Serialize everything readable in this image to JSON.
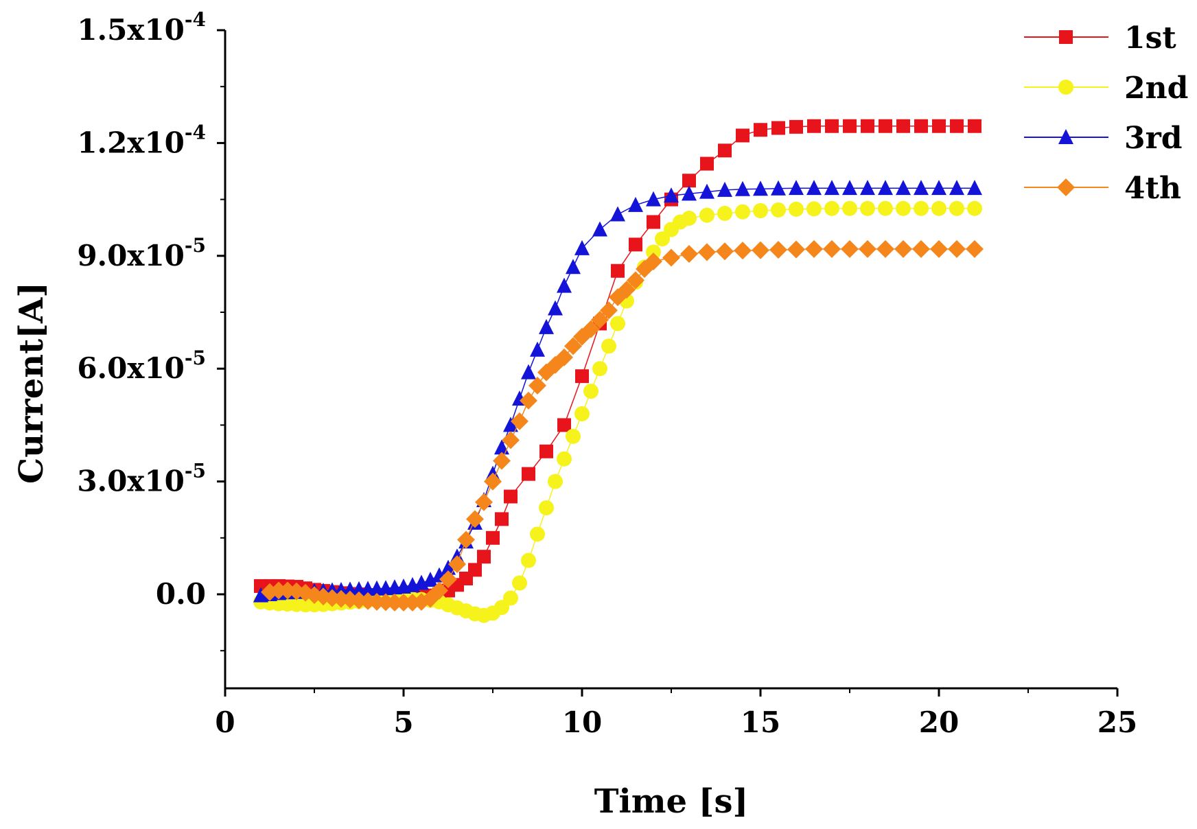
{
  "chart_data": {
    "type": "scatter",
    "title": "",
    "xlabel": "Time [s]",
    "ylabel": "Current[A]",
    "xlim": [
      0,
      25
    ],
    "ylim": [
      -2.5e-05,
      0.00015
    ],
    "x_ticks": [
      0,
      5,
      10,
      15,
      20,
      25
    ],
    "x_tick_labels": [
      "0",
      "5",
      "10",
      "15",
      "20",
      "25"
    ],
    "y_ticks": [
      0,
      3e-05,
      6e-05,
      9e-05,
      0.00012,
      0.00015
    ],
    "y_tick_labels": [
      {
        "mantissa": "0.0",
        "exp": ""
      },
      {
        "mantissa": "3.0x10",
        "exp": "-5"
      },
      {
        "mantissa": "6.0x10",
        "exp": "-5"
      },
      {
        "mantissa": "9.0x10",
        "exp": "-5"
      },
      {
        "mantissa": "1.2x10",
        "exp": "-4"
      },
      {
        "mantissa": "1.5x10",
        "exp": "-4"
      }
    ],
    "legend_position": "top-right",
    "series": [
      {
        "name": "1st",
        "color": "#e8141b",
        "marker": "square",
        "x": [
          1,
          1.25,
          1.5,
          1.75,
          2,
          2.25,
          2.5,
          2.75,
          3,
          3.25,
          3.5,
          3.75,
          4,
          4.25,
          4.5,
          4.75,
          5,
          5.25,
          5.5,
          5.75,
          6,
          6.25,
          6.5,
          6.75,
          7,
          7.25,
          7.5,
          7.75,
          8,
          8.5,
          9,
          9.5,
          10,
          10.5,
          11,
          11.5,
          12,
          12.5,
          13,
          13.5,
          14,
          14.5,
          15,
          15.5,
          16,
          16.5,
          17,
          17.5,
          18,
          18.5,
          19,
          19.5,
          20,
          20.5,
          21
        ],
        "y": [
          2.2e-06,
          2.2e-06,
          2.2e-06,
          2.1e-06,
          2e-06,
          1.6e-06,
          1.2e-06,
          9e-07,
          6e-07,
          3e-07,
          1e-07,
          0,
          -2e-07,
          -4e-07,
          -5e-07,
          -6e-07,
          -6e-07,
          -5e-07,
          -4e-07,
          -3e-07,
          0,
          1e-06,
          2.5e-06,
          4.2e-06,
          6.5e-06,
          1e-05,
          1.5e-05,
          2e-05,
          2.6e-05,
          3.2e-05,
          3.8e-05,
          4.5e-05,
          5.8e-05,
          7.2e-05,
          8.6e-05,
          9.3e-05,
          9.9e-05,
          0.000105,
          0.00011,
          0.0001145,
          0.000118,
          0.000122,
          0.0001235,
          0.000124,
          0.0001243,
          0.0001245,
          0.0001245,
          0.0001245,
          0.0001245,
          0.0001245,
          0.0001245,
          0.0001245,
          0.0001245,
          0.0001245,
          0.0001245
        ]
      },
      {
        "name": "2nd",
        "color": "#f5f21c",
        "marker": "circle",
        "x": [
          1,
          1.25,
          1.5,
          1.75,
          2,
          2.25,
          2.5,
          2.75,
          3,
          3.25,
          3.5,
          3.75,
          4,
          4.25,
          4.5,
          4.75,
          5,
          5.25,
          5.5,
          5.75,
          6,
          6.25,
          6.5,
          6.75,
          7,
          7.25,
          7.5,
          7.75,
          8,
          8.25,
          8.5,
          8.75,
          9,
          9.25,
          9.5,
          9.75,
          10,
          10.25,
          10.5,
          10.75,
          11,
          11.25,
          11.5,
          11.75,
          12,
          12.25,
          12.5,
          12.75,
          13,
          13.5,
          14,
          14.5,
          15,
          15.5,
          16,
          16.5,
          17,
          17.5,
          18,
          18.5,
          19,
          19.5,
          20,
          20.5,
          21
        ],
        "y": [
          -2e-06,
          -2.3e-06,
          -2.5e-06,
          -2.6e-06,
          -2.7e-06,
          -2.8e-06,
          -2.8e-06,
          -2.7e-06,
          -2.5e-06,
          -2.3e-06,
          -2.1e-06,
          -1.9e-06,
          -1.7e-06,
          -1.6e-06,
          -1.5e-06,
          -1.4e-06,
          -1.3e-06,
          -1.3e-06,
          -1.4e-06,
          -1.6e-06,
          -2e-06,
          -2.8e-06,
          -3.6e-06,
          -4.4e-06,
          -5.2e-06,
          -5.6e-06,
          -5e-06,
          -3.5e-06,
          -1e-06,
          3e-06,
          9e-06,
          1.6e-05,
          2.3e-05,
          3e-05,
          3.6e-05,
          4.2e-05,
          4.8e-05,
          5.4e-05,
          6e-05,
          6.6e-05,
          7.2e-05,
          7.8e-05,
          8.3e-05,
          8.7e-05,
          9.1e-05,
          9.45e-05,
          9.7e-05,
          9.9e-05,
          0.0001,
          0.0001008,
          0.0001013,
          0.0001017,
          0.000102,
          0.0001022,
          0.0001024,
          0.0001025,
          0.0001026,
          0.0001026,
          0.0001026,
          0.0001026,
          0.0001026,
          0.0001026,
          0.0001026,
          0.0001026,
          0.0001026
        ]
      },
      {
        "name": "3rd",
        "color": "#1414d8",
        "marker": "triangle",
        "x": [
          1,
          1.25,
          1.5,
          1.75,
          2,
          2.25,
          2.5,
          2.75,
          3,
          3.25,
          3.5,
          3.75,
          4,
          4.25,
          4.5,
          4.75,
          5,
          5.25,
          5.5,
          5.75,
          6,
          6.25,
          6.5,
          6.75,
          7,
          7.25,
          7.5,
          7.75,
          8,
          8.25,
          8.5,
          8.75,
          9,
          9.25,
          9.5,
          9.75,
          10,
          10.5,
          11,
          11.5,
          12,
          12.5,
          13,
          13.5,
          14,
          14.5,
          15,
          15.5,
          16,
          16.5,
          17,
          17.5,
          18,
          18.5,
          19,
          19.5,
          20,
          20.5,
          21
        ],
        "y": [
          -3e-07,
          0,
          3e-07,
          5e-07,
          6e-07,
          7e-07,
          8e-07,
          9e-07,
          1e-06,
          1.1e-06,
          1.2e-06,
          1.3e-06,
          1.4e-06,
          1.5e-06,
          1.6e-06,
          1.8e-06,
          2e-06,
          2.4e-06,
          3e-06,
          3.8e-06,
          5e-06,
          7e-06,
          1e-05,
          1.4e-05,
          1.9e-05,
          2.5e-05,
          3.2e-05,
          3.9e-05,
          4.5e-05,
          5.2e-05,
          5.9e-05,
          6.5e-05,
          7.1e-05,
          7.6e-05,
          8.2e-05,
          8.7e-05,
          9.2e-05,
          9.7e-05,
          0.000101,
          0.0001035,
          0.000105,
          0.000106,
          0.0001065,
          0.000107,
          0.0001075,
          0.0001077,
          0.0001078,
          0.0001079,
          0.000108,
          0.000108,
          0.000108,
          0.000108,
          0.000108,
          0.000108,
          0.000108,
          0.000108,
          0.000108,
          0.000108,
          0.000108
        ]
      },
      {
        "name": "4th",
        "color": "#f5861c",
        "marker": "diamond",
        "x": [
          1.25,
          1.5,
          1.75,
          2,
          2.25,
          2.5,
          2.75,
          3,
          3.25,
          3.5,
          3.75,
          4,
          4.25,
          4.5,
          4.75,
          5,
          5.25,
          5.5,
          5.75,
          6,
          6.25,
          6.5,
          6.75,
          7,
          7.25,
          7.5,
          7.75,
          8,
          8.25,
          8.5,
          8.75,
          9,
          9.25,
          9.5,
          9.75,
          10,
          10.25,
          10.5,
          10.75,
          11,
          11.25,
          11.5,
          11.75,
          12,
          12.5,
          13,
          13.5,
          14,
          14.5,
          15,
          15.5,
          16,
          16.5,
          17,
          17.5,
          18,
          18.5,
          19,
          19.5,
          20,
          20.5,
          21
        ],
        "y": [
          6e-07,
          1e-06,
          1e-06,
          8e-07,
          4e-07,
          -2e-07,
          -6e-07,
          -1e-06,
          -1.2e-06,
          -1.4e-06,
          -1.6e-06,
          -1.8e-06,
          -2e-06,
          -2.1e-06,
          -2.2e-06,
          -2.2e-06,
          -2.2e-06,
          -2e-06,
          -1.2e-06,
          1e-06,
          4e-06,
          8e-06,
          1.45e-05,
          2e-05,
          2.45e-05,
          3e-05,
          3.55e-05,
          4.1e-05,
          4.6e-05,
          5.15e-05,
          5.55e-05,
          5.9e-05,
          6.1e-05,
          6.3e-05,
          6.6e-05,
          6.85e-05,
          7.05e-05,
          7.3e-05,
          7.55e-05,
          7.9e-05,
          8.1e-05,
          8.35e-05,
          8.65e-05,
          8.85e-05,
          8.95e-05,
          9.05e-05,
          9.1e-05,
          9.12e-05,
          9.14e-05,
          9.15e-05,
          9.16e-05,
          9.17e-05,
          9.18e-05,
          9.18e-05,
          9.18e-05,
          9.18e-05,
          9.18e-05,
          9.18e-05,
          9.18e-05,
          9.18e-05,
          9.18e-05,
          9.18e-05
        ]
      }
    ]
  }
}
